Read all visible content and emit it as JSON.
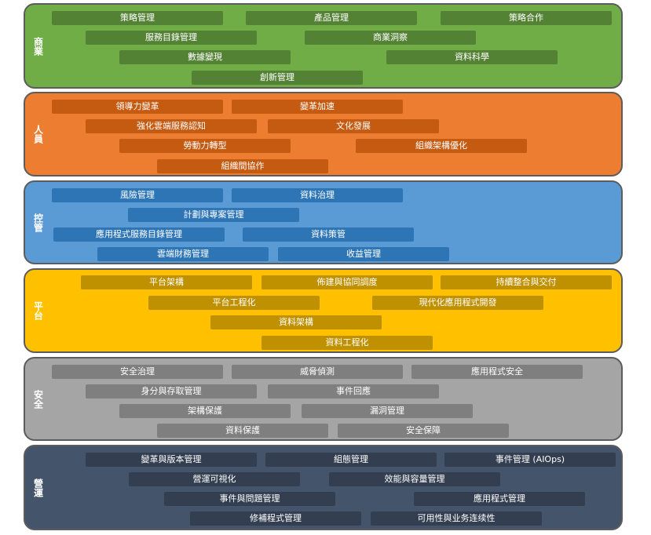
{
  "layers": [
    {
      "label": "商業",
      "color": "#70ad47",
      "item_color": "#548235",
      "items": [
        "策略管理",
        "產品管理",
        "策略合作",
        "服務目錄管理",
        "商業洞察",
        "數據變現",
        "資料科學",
        "創新管理"
      ]
    },
    {
      "label": "人員",
      "color": "#ed7d31",
      "item_color": "#c55a11",
      "items": [
        "領導力變革",
        "變革加速",
        "強化雲端服務認知",
        "文化發展",
        "勞動力轉型",
        "組織架構優化",
        "組織間協作"
      ]
    },
    {
      "label": "控管",
      "color": "#5b9bd5",
      "item_color": "#2e75b6",
      "items": [
        "風險管理",
        "資料治理",
        "計劃與專案管理",
        "應用程式服務目錄管理",
        "資料策管",
        "雲端財務管理",
        "收益管理"
      ]
    },
    {
      "label": "平台",
      "color": "#ffc000",
      "item_color": "#bf9000",
      "items": [
        "平台架構",
        "佈建與協同調度",
        "持續整合與交付",
        "平台工程化",
        "現代化應用程式開發",
        "資料架構",
        "資料工程化"
      ]
    },
    {
      "label": "安全",
      "color": "#a5a5a5",
      "item_color": "#7f7f7f",
      "items": [
        "安全治理",
        "威脅偵測",
        "應用程式安全",
        "身分與存取管理",
        "事件回應",
        "架構保護",
        "漏洞管理",
        "資料保護",
        "安全保障"
      ]
    },
    {
      "label": "營運",
      "color": "#44546a",
      "item_color": "#333f50",
      "items": [
        "變革與版本管理",
        "組態管理",
        "事件管理 (AIOps)",
        "營運可視化",
        "效能與容量管理",
        "事件與問題管理",
        "應用程式管理",
        "修補程式管理",
        "可用性與业务连续性"
      ]
    }
  ]
}
